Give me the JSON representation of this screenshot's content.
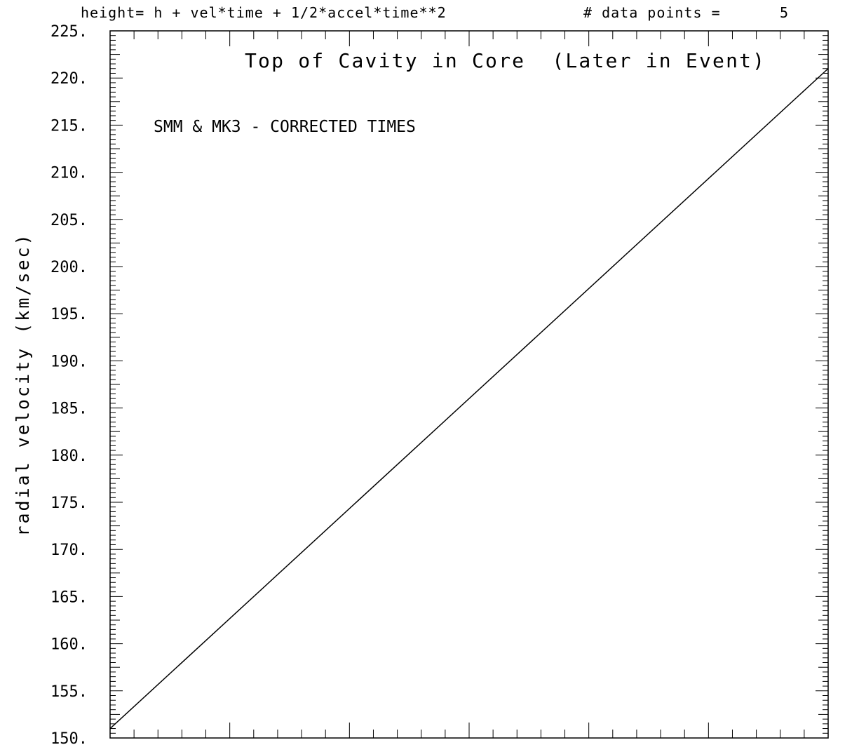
{
  "chart_data": {
    "type": "line",
    "header_formula": "height= h + vel*time + 1/2*accel*time**2",
    "header_points_label": "# data points =",
    "header_points_value": "5",
    "title": "Top of Cavity in Core  (Later in Event)",
    "subtitle": "SMM & MK3 - CORRECTED TIMES",
    "xlabel": "",
    "ylabel": "radial velocity (km/sec)",
    "ylim": [
      150,
      225
    ],
    "xlim": [
      0,
      1
    ],
    "y_tick_labels": [
      "150.",
      "155.",
      "160.",
      "165.",
      "170.",
      "175.",
      "180.",
      "185.",
      "190.",
      "195.",
      "200.",
      "205.",
      "210.",
      "215.",
      "220.",
      "225."
    ],
    "y_tick_values": [
      150,
      155,
      160,
      165,
      170,
      175,
      180,
      185,
      190,
      195,
      200,
      205,
      210,
      215,
      220,
      225
    ],
    "series": [
      {
        "x": [
          0,
          1
        ],
        "y": [
          151,
          221
        ]
      }
    ],
    "grid": false,
    "line_color": "#000000"
  }
}
